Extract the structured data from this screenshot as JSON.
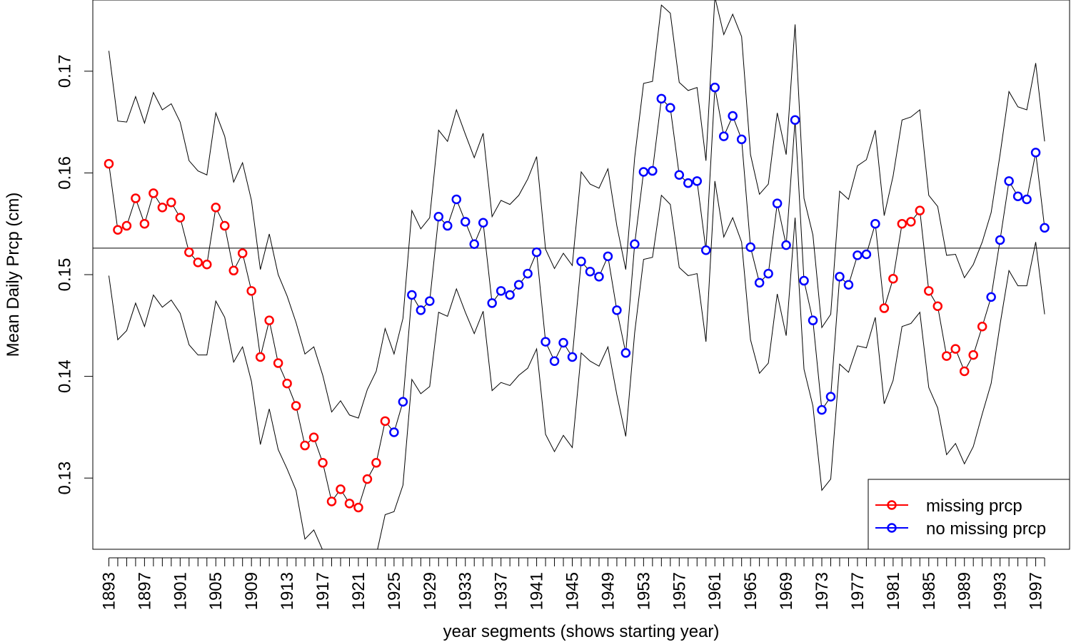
{
  "chart_data": {
    "type": "line",
    "title": "",
    "xlabel": "year segments (shows starting year)",
    "ylabel": "Mean Daily Prcp (cm)",
    "ylim": [
      0.123,
      0.177
    ],
    "xlim": [
      1891.2,
      2000.8
    ],
    "y_ticks": [
      0.13,
      0.14,
      0.15,
      0.16,
      0.17
    ],
    "y_tick_labels": [
      "0.13",
      "0.14",
      "0.15",
      "0.16",
      "0.17"
    ],
    "x_ticks": [
      1893,
      1897,
      1901,
      1905,
      1909,
      1913,
      1917,
      1921,
      1925,
      1929,
      1933,
      1937,
      1941,
      1945,
      1949,
      1953,
      1957,
      1961,
      1965,
      1969,
      1973,
      1977,
      1981,
      1985,
      1989,
      1993,
      1997
    ],
    "x_tick_labels": [
      "1893",
      "1897",
      "1901",
      "1905",
      "1909",
      "1913",
      "1917",
      "1921",
      "1925",
      "1929",
      "1933",
      "1937",
      "1941",
      "1945",
      "1949",
      "1953",
      "1957",
      "1961",
      "1965",
      "1969",
      "1973",
      "1977",
      "1981",
      "1985",
      "1989",
      "1993",
      "1997"
    ],
    "x": [
      1893,
      1894,
      1895,
      1896,
      1897,
      1898,
      1899,
      1900,
      1901,
      1902,
      1903,
      1904,
      1905,
      1906,
      1907,
      1908,
      1909,
      1910,
      1911,
      1912,
      1913,
      1914,
      1915,
      1916,
      1917,
      1918,
      1919,
      1920,
      1921,
      1922,
      1923,
      1924,
      1925,
      1926,
      1927,
      1928,
      1929,
      1930,
      1931,
      1932,
      1933,
      1934,
      1935,
      1936,
      1937,
      1938,
      1939,
      1940,
      1941,
      1942,
      1943,
      1944,
      1945,
      1946,
      1947,
      1948,
      1949,
      1950,
      1951,
      1952,
      1953,
      1954,
      1955,
      1956,
      1957,
      1958,
      1959,
      1960,
      1961,
      1962,
      1963,
      1964,
      1965,
      1966,
      1967,
      1968,
      1969,
      1970,
      1971,
      1972,
      1973,
      1974,
      1975,
      1976,
      1977,
      1978,
      1979,
      1980,
      1981,
      1982,
      1983,
      1984,
      1985,
      1986,
      1987,
      1988,
      1989,
      1990,
      1991,
      1992,
      1993,
      1994,
      1995,
      1996,
      1997,
      1998
    ],
    "series": [
      {
        "name": "mean",
        "values": [
          0.1609,
          0.1544,
          0.1548,
          0.1575,
          0.155,
          0.158,
          0.1566,
          0.1571,
          0.1556,
          0.1522,
          0.1512,
          0.151,
          0.1566,
          0.1548,
          0.1504,
          0.1521,
          0.1484,
          0.1419,
          0.1455,
          0.1413,
          0.1393,
          0.1371,
          0.1332,
          0.134,
          0.1315,
          0.1277,
          0.1289,
          0.1275,
          0.1271,
          0.1299,
          0.1315,
          0.1356,
          0.1345,
          0.1375,
          0.148,
          0.1465,
          0.1474,
          0.1557,
          0.1548,
          0.1574,
          0.1552,
          0.153,
          0.1551,
          0.1472,
          0.1484,
          0.148,
          0.149,
          0.1501,
          0.1522,
          0.1434,
          0.1415,
          0.1433,
          0.1419,
          0.1513,
          0.1503,
          0.1498,
          0.1518,
          0.1465,
          0.1423,
          0.153,
          0.1601,
          0.1602,
          0.1673,
          0.1664,
          0.1598,
          0.159,
          0.1592,
          0.1524,
          0.1684,
          0.1636,
          0.1656,
          0.1633,
          0.1527,
          0.1492,
          0.1501,
          0.157,
          0.1529,
          0.1652,
          0.1494,
          0.1455,
          0.1367,
          0.138,
          0.1498,
          0.149,
          0.1519,
          0.152,
          0.155,
          0.1467,
          0.1496,
          0.155,
          0.1552,
          0.1563,
          0.1484,
          0.1469,
          0.142,
          0.1427,
          0.1405,
          0.1421,
          0.1449,
          0.1478,
          0.1534,
          0.1592,
          0.1577,
          0.1574,
          0.162,
          0.1546
        ]
      },
      {
        "name": "upper",
        "values": [
          0.172,
          0.1651,
          0.165,
          0.1675,
          0.1649,
          0.1679,
          0.1662,
          0.1668,
          0.165,
          0.1612,
          0.1602,
          0.1598,
          0.1659,
          0.1636,
          0.1591,
          0.161,
          0.1573,
          0.1505,
          0.154,
          0.15,
          0.1479,
          0.1453,
          0.1422,
          0.1429,
          0.1401,
          0.1365,
          0.1376,
          0.1362,
          0.1359,
          0.1387,
          0.1405,
          0.1447,
          0.1422,
          0.1457,
          0.1563,
          0.1545,
          0.1556,
          0.1642,
          0.1631,
          0.1662,
          0.1638,
          0.1615,
          0.1639,
          0.1557,
          0.1573,
          0.1569,
          0.1578,
          0.1594,
          0.1616,
          0.1525,
          0.1506,
          0.1521,
          0.1509,
          0.1601,
          0.1589,
          0.1585,
          0.1604,
          0.1548,
          0.1505,
          0.1615,
          0.1688,
          0.169,
          0.1765,
          0.1757,
          0.1689,
          0.1681,
          0.1684,
          0.1612,
          0.1773,
          0.1736,
          0.1756,
          0.1734,
          0.1618,
          0.1579,
          0.1589,
          0.1659,
          0.1618,
          0.1746,
          0.1575,
          0.1539,
          0.1448,
          0.1461,
          0.1582,
          0.1574,
          0.1607,
          0.1613,
          0.1642,
          0.1558,
          0.1597,
          0.1652,
          0.1655,
          0.1662,
          0.1578,
          0.1567,
          0.1519,
          0.152,
          0.1497,
          0.151,
          0.1532,
          0.1561,
          0.1618,
          0.168,
          0.1665,
          0.1662,
          0.1708,
          0.1631
        ]
      },
      {
        "name": "lower",
        "values": [
          0.1499,
          0.1436,
          0.1445,
          0.1472,
          0.1449,
          0.148,
          0.1468,
          0.1475,
          0.1462,
          0.1431,
          0.1421,
          0.1421,
          0.1474,
          0.1458,
          0.1414,
          0.1429,
          0.1395,
          0.1333,
          0.1368,
          0.1328,
          0.1309,
          0.1288,
          0.124,
          0.1249,
          0.1229,
          0.1191,
          0.1199,
          0.1186,
          0.1181,
          0.1208,
          0.1224,
          0.1264,
          0.1267,
          0.1293,
          0.1397,
          0.1383,
          0.139,
          0.1463,
          0.1459,
          0.1486,
          0.1463,
          0.1442,
          0.1464,
          0.1386,
          0.1394,
          0.1391,
          0.1401,
          0.1408,
          0.1427,
          0.1343,
          0.1326,
          0.1342,
          0.133,
          0.1423,
          0.1415,
          0.141,
          0.1429,
          0.1382,
          0.1341,
          0.1443,
          0.1515,
          0.1517,
          0.1578,
          0.1569,
          0.1507,
          0.1499,
          0.1501,
          0.1434,
          0.1592,
          0.1537,
          0.1556,
          0.1532,
          0.1436,
          0.1403,
          0.1413,
          0.1481,
          0.144,
          0.1556,
          0.1407,
          0.1371,
          0.1288,
          0.1299,
          0.1412,
          0.1404,
          0.143,
          0.1428,
          0.1458,
          0.1373,
          0.1396,
          0.1449,
          0.1452,
          0.1463,
          0.1389,
          0.1369,
          0.1323,
          0.1334,
          0.1314,
          0.1331,
          0.1363,
          0.1393,
          0.1451,
          0.1504,
          0.1489,
          0.1489,
          0.1532,
          0.1461
        ]
      }
    ],
    "reference_line": 0.1526,
    "point_colors": [
      "#ff0000",
      "#ff0000",
      "#ff0000",
      "#ff0000",
      "#ff0000",
      "#ff0000",
      "#ff0000",
      "#ff0000",
      "#ff0000",
      "#ff0000",
      "#ff0000",
      "#ff0000",
      "#ff0000",
      "#ff0000",
      "#ff0000",
      "#ff0000",
      "#ff0000",
      "#ff0000",
      "#ff0000",
      "#ff0000",
      "#ff0000",
      "#ff0000",
      "#ff0000",
      "#ff0000",
      "#ff0000",
      "#ff0000",
      "#ff0000",
      "#ff0000",
      "#ff0000",
      "#ff0000",
      "#ff0000",
      "#ff0000",
      "#0000ff",
      "#0000ff",
      "#0000ff",
      "#0000ff",
      "#0000ff",
      "#0000ff",
      "#0000ff",
      "#0000ff",
      "#0000ff",
      "#0000ff",
      "#0000ff",
      "#0000ff",
      "#0000ff",
      "#0000ff",
      "#0000ff",
      "#0000ff",
      "#0000ff",
      "#0000ff",
      "#0000ff",
      "#0000ff",
      "#0000ff",
      "#0000ff",
      "#0000ff",
      "#0000ff",
      "#0000ff",
      "#0000ff",
      "#0000ff",
      "#0000ff",
      "#0000ff",
      "#0000ff",
      "#0000ff",
      "#0000ff",
      "#0000ff",
      "#0000ff",
      "#0000ff",
      "#0000ff",
      "#0000ff",
      "#0000ff",
      "#0000ff",
      "#0000ff",
      "#0000ff",
      "#0000ff",
      "#0000ff",
      "#0000ff",
      "#0000ff",
      "#0000ff",
      "#0000ff",
      "#0000ff",
      "#0000ff",
      "#0000ff",
      "#0000ff",
      "#0000ff",
      "#0000ff",
      "#0000ff",
      "#0000ff",
      "#ff0000",
      "#ff0000",
      "#ff0000",
      "#ff0000",
      "#ff0000",
      "#ff0000",
      "#ff0000",
      "#ff0000",
      "#ff0000",
      "#ff0000",
      "#ff0000",
      "#ff0000",
      "#0000ff",
      "#0000ff",
      "#0000ff",
      "#0000ff",
      "#0000ff",
      "#0000ff",
      "#0000ff"
    ],
    "legend": {
      "position": "bottom-right",
      "entries": [
        {
          "label": "missing prcp",
          "color": "#ff0000"
        },
        {
          "label": "no missing prcp",
          "color": "#0000ff"
        }
      ]
    },
    "grid": false
  }
}
